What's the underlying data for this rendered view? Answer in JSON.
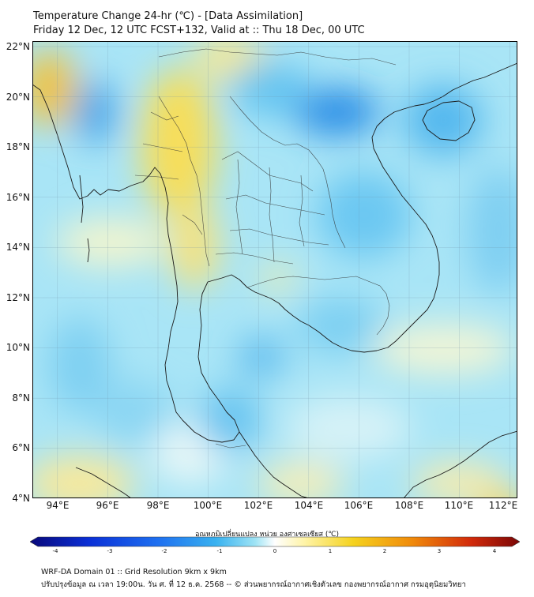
{
  "header": {
    "line1": "Temperature Change 24-hr (℃) - [Data Assimilation]",
    "line2": "Friday 12 Dec, 12 UTC FCST+132, Valid at :: Thu 18 Dec, 00 UTC"
  },
  "map": {
    "lat_labels": [
      "22°N",
      "20°N",
      "18°N",
      "16°N",
      "14°N",
      "12°N",
      "10°N",
      "8°N",
      "6°N",
      "4°N"
    ],
    "lon_labels": [
      "94°E",
      "96°E",
      "98°E",
      "100°E",
      "102°E",
      "104°E",
      "106°E",
      "108°E",
      "110°E",
      "112°E"
    ],
    "extent": {
      "lon_min": 93,
      "lon_max": 112.3,
      "lat_min": 4,
      "lat_max": 22.2
    }
  },
  "colorbar": {
    "title": "อุณหภูมิเปลี่ยนแปลง หน่วย องศาเซลเซียส (℃)",
    "ticks": [
      "-4",
      "-3",
      "-2",
      "-1",
      "0",
      "1",
      "2",
      "3",
      "4"
    ],
    "colors": [
      "#08087a",
      "#0a2fd6",
      "#1e6ff0",
      "#39b2f0",
      "#9fe4f5",
      "#ffffff",
      "#fff4a8",
      "#f5d21e",
      "#f08a0a",
      "#d22a0a",
      "#7a0606"
    ]
  },
  "footer": {
    "line1": "WRF-DA Domain 01 :: Grid Resolution 9km x 9km",
    "line2": "ปรับปรุงข้อมูล ณ เวลา 19:00น. วัน ศ. ที่ 12 ธ.ค. 2568 -- © ส่วนพยากรณ์อากาศเชิงตัวเลข กองพยากรณ์อากาศ กรมอุตุนิยมวิทยา"
  }
}
